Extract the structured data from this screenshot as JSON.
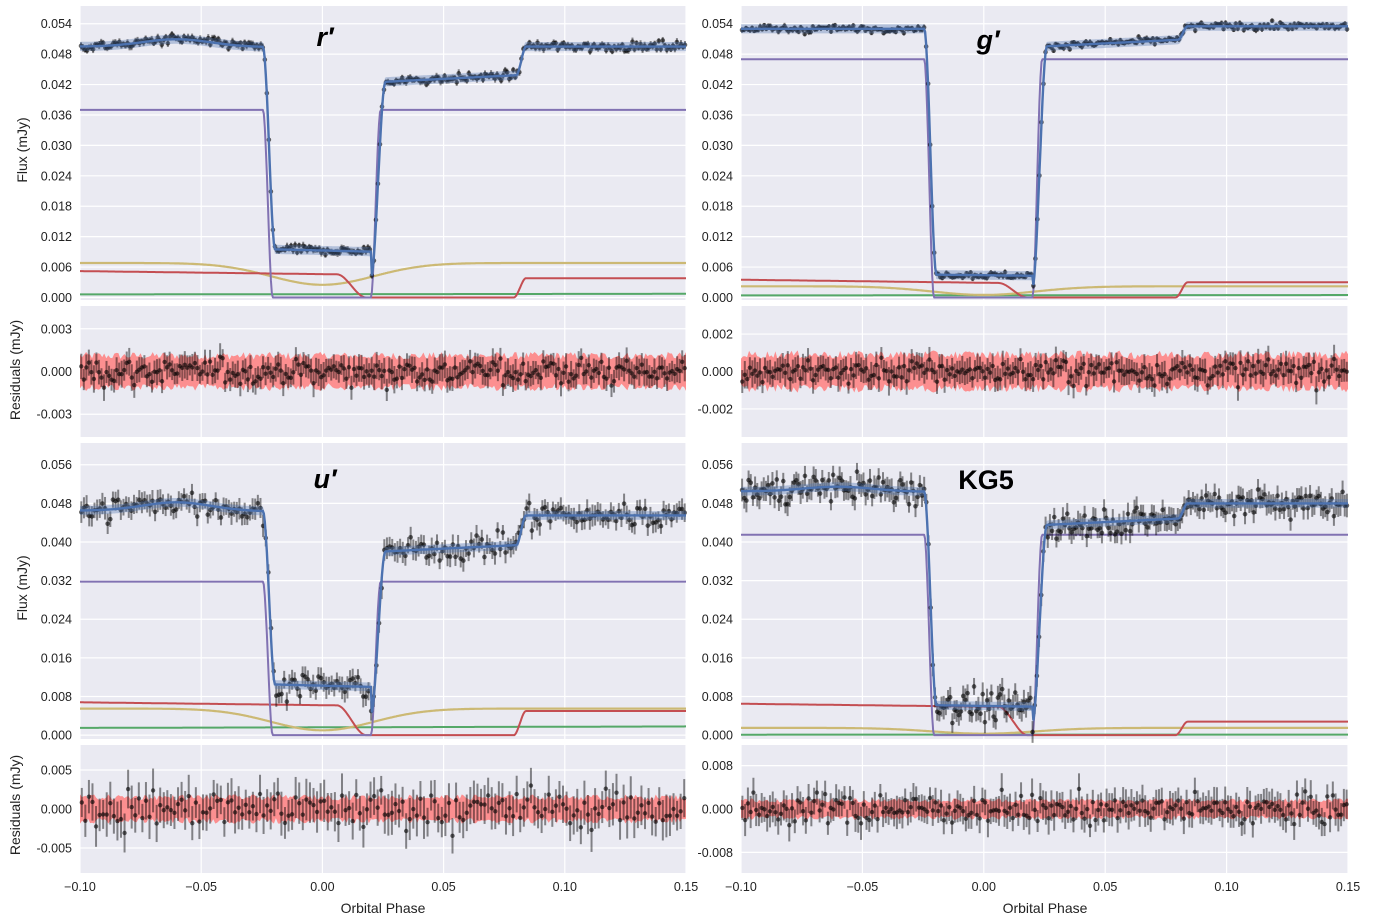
{
  "chart_data": {
    "type": "scatter",
    "description_units": "phase vs flux (mJy)",
    "xlim": [
      -0.1,
      0.15
    ],
    "x_ticks": [
      "−0.10",
      "−0.05",
      "0.00",
      "0.05",
      "0.10",
      "0.15"
    ],
    "x_tick_values": [
      -0.1,
      -0.05,
      0.0,
      0.05,
      0.1,
      0.15
    ],
    "xlabel": "Orbital Phase",
    "flux_ylabel": "Flux (mJy)",
    "resid_ylabel": "Residuals (mJy)",
    "grid": true,
    "component_colors": {
      "model": "#4c72b0",
      "white_dwarf": "#8172b2",
      "disc": "#c44e52",
      "donor": "#55a868",
      "bright_spot": "#ccb974"
    },
    "data_color": "#000000",
    "resid_band_color": "#ff7f7f",
    "panels": [
      {
        "band": "r′",
        "italic": true,
        "flux_ylim": [
          -0.0005,
          0.0575
        ],
        "flux_ticks": [
          0.0,
          0.006,
          0.012,
          0.018,
          0.024,
          0.03,
          0.036,
          0.042,
          0.048,
          0.054
        ],
        "flux_tick_labels": [
          "0.000",
          "0.006",
          "0.012",
          "0.018",
          "0.024",
          "0.030",
          "0.036",
          "0.042",
          "0.048",
          "0.054"
        ],
        "resid_ylim": [
          -0.0046,
          0.0046
        ],
        "resid_ticks": [
          -0.003,
          0.0,
          0.003
        ],
        "resid_tick_labels": [
          "-0.003",
          "0.000",
          "0.003"
        ],
        "resid_band": 0.0011,
        "noise": 0.0009,
        "n_points": 240,
        "out_level": 0.0495,
        "slope": 0.05,
        "hump": 0.0015,
        "bottom_level": 0.0095,
        "post_level": 0.0425,
        "step_phase": 0.08,
        "post_step_level": 0.0495,
        "white_dwarf": 0.037,
        "disc_pre": 0.0052,
        "disc_post": 0.0038,
        "bright_spot": 0.0068,
        "bright_spot_min": 0.0025,
        "donor": 0.0006
      },
      {
        "band": "g′",
        "italic": true,
        "flux_ylim": [
          -0.0005,
          0.0575
        ],
        "flux_ticks": [
          0.0,
          0.006,
          0.012,
          0.018,
          0.024,
          0.03,
          0.036,
          0.042,
          0.048,
          0.054
        ],
        "flux_tick_labels": [
          "0.000",
          "0.006",
          "0.012",
          "0.018",
          "0.024",
          "0.030",
          "0.036",
          "0.042",
          "0.048",
          "0.054"
        ],
        "resid_ylim": [
          -0.0035,
          0.0035
        ],
        "resid_ticks": [
          -0.002,
          0.0,
          0.002
        ],
        "resid_tick_labels": [
          "-0.002",
          "0.000",
          "0.002"
        ],
        "resid_band": 0.0009,
        "noise": 0.0007,
        "n_points": 240,
        "out_level": 0.053,
        "slope": 0.0,
        "hump": 0.0,
        "bottom_level": 0.0045,
        "post_level": 0.0495,
        "step_phase": 0.08,
        "post_step_level": 0.0535,
        "white_dwarf": 0.047,
        "disc_pre": 0.0035,
        "disc_post": 0.003,
        "bright_spot": 0.0022,
        "bright_spot_min": 0.0005,
        "donor": 0.0004
      },
      {
        "band": "u′",
        "italic": true,
        "flux_ylim": [
          -0.0008,
          0.0605
        ],
        "flux_ticks": [
          0.0,
          0.008,
          0.016,
          0.024,
          0.032,
          0.04,
          0.048,
          0.056
        ],
        "flux_tick_labels": [
          "0.000",
          "0.008",
          "0.016",
          "0.024",
          "0.032",
          "0.040",
          "0.048",
          "0.056"
        ],
        "resid_ylim": [
          -0.0082,
          0.0082
        ],
        "resid_ticks": [
          -0.005,
          0.0,
          0.005
        ],
        "resid_tick_labels": [
          "-0.005",
          "0.000",
          "0.005"
        ],
        "resid_band": 0.0015,
        "noise": 0.0026,
        "n_points": 170,
        "out_level": 0.0465,
        "slope": 0.07,
        "hump": 0.0018,
        "bottom_level": 0.0105,
        "post_level": 0.038,
        "step_phase": 0.08,
        "post_step_level": 0.0455,
        "white_dwarf": 0.0318,
        "disc_pre": 0.0068,
        "disc_post": 0.005,
        "bright_spot": 0.0055,
        "bright_spot_min": 0.001,
        "donor": 0.0015
      },
      {
        "band": "KG5",
        "italic": false,
        "flux_ylim": [
          -0.0008,
          0.0605
        ],
        "flux_ticks": [
          0.0,
          0.008,
          0.016,
          0.024,
          0.032,
          0.04,
          0.048,
          0.056
        ],
        "flux_tick_labels": [
          "0.000",
          "0.008",
          "0.016",
          "0.024",
          "0.032",
          "0.040",
          "0.048",
          "0.056"
        ],
        "resid_ylim": [
          -0.0118,
          0.0118
        ],
        "resid_ticks": [
          -0.008,
          0.0,
          0.008
        ],
        "resid_tick_labels": [
          "-0.008",
          "0.000",
          "0.008"
        ],
        "resid_band": 0.0016,
        "noise": 0.0028,
        "n_points": 220,
        "out_level": 0.0505,
        "slope": 0.04,
        "hump": 0.001,
        "bottom_level": 0.0062,
        "post_level": 0.0435,
        "step_phase": 0.08,
        "post_step_level": 0.048,
        "white_dwarf": 0.0415,
        "disc_pre": 0.0065,
        "disc_post": 0.0028,
        "bright_spot": 0.0015,
        "bright_spot_min": 0.0003,
        "donor": 0.0001
      }
    ]
  }
}
